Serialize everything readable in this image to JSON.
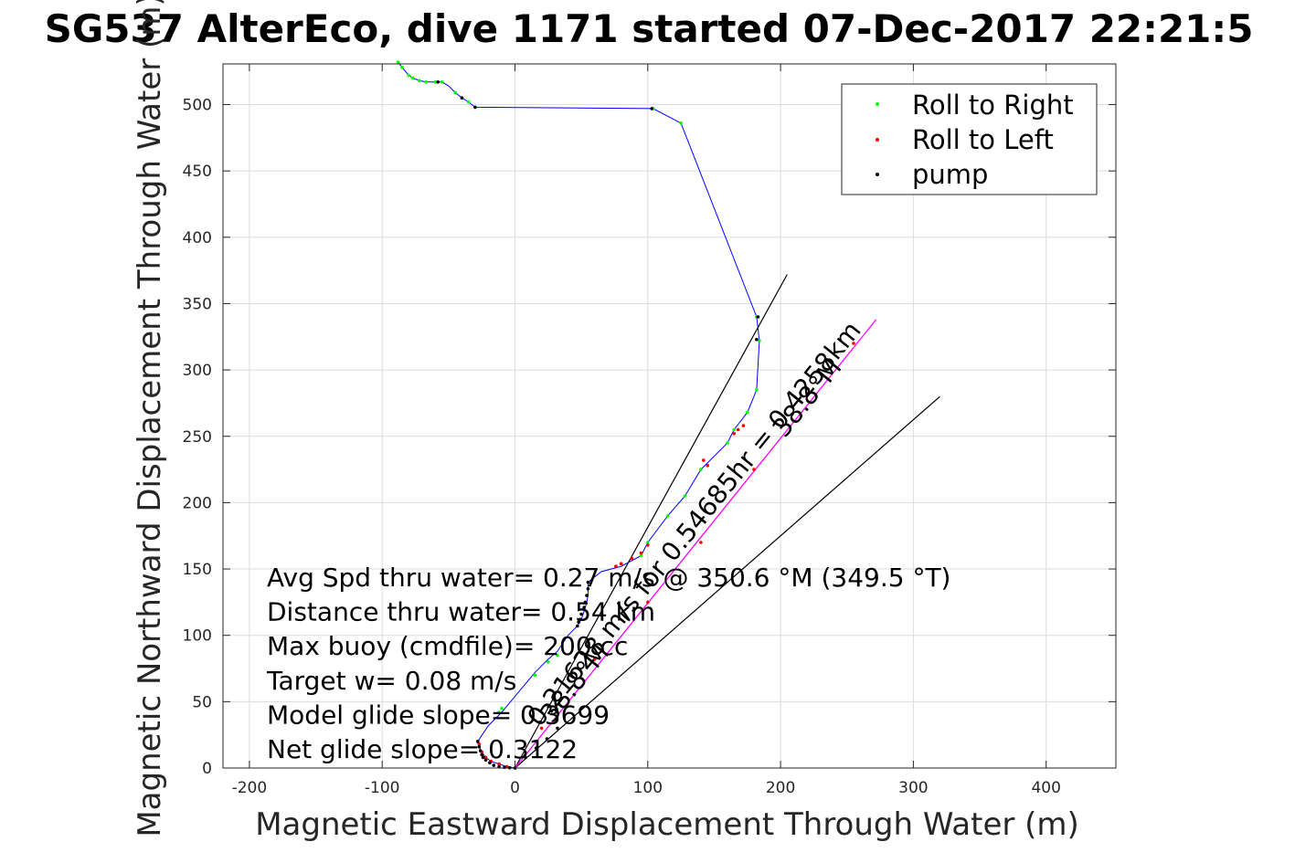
{
  "chart_data": {
    "type": "scatter",
    "title": "SG537 AlterEco, dive 1171 started 07-Dec-2017 22:21:5",
    "xlabel": "Magnetic Eastward Displacement Through Water (m)",
    "ylabel": "Magnetic Northward Displacement Through Water (m)",
    "xlim": [
      -220,
      450
    ],
    "ylim": [
      0,
      532
    ],
    "xticks": [
      -200,
      -100,
      0,
      100,
      200,
      300,
      400
    ],
    "xtick_labels": [
      "-200",
      "-100",
      "0",
      "100",
      "200",
      "300",
      "400"
    ],
    "yticks": [
      0,
      50,
      100,
      150,
      200,
      250,
      300,
      350,
      400,
      450,
      500
    ],
    "ytick_labels": [
      "0",
      "50",
      "100",
      "150",
      "200",
      "250",
      "300",
      "350",
      "400",
      "450",
      "500"
    ],
    "grid": true,
    "legend_position": "top-right",
    "colors": {
      "track": "#0000ff",
      "roll_right": "#00ff00",
      "roll_left": "#ff0000",
      "pump": "#000000",
      "net_line": "#ff00ff",
      "heading_line": "#000000",
      "grid": "#dcdcdc",
      "axes": "#262626"
    },
    "series": [
      {
        "name": "Roll to Right",
        "color": "#00ff00",
        "x": [
          -88,
          -85,
          -80,
          -77,
          -72,
          -67,
          -60,
          -55,
          -45,
          -35,
          -30,
          104,
          125,
          182,
          184,
          182,
          175,
          165,
          160,
          140,
          128,
          115,
          100,
          95,
          32,
          25,
          15,
          -10,
          -12
        ],
        "y": [
          532,
          528,
          522,
          520,
          518,
          517,
          517,
          517,
          509,
          502,
          498,
          497,
          486,
          340,
          322,
          285,
          268,
          255,
          245,
          225,
          205,
          190,
          170,
          160,
          85,
          80,
          70,
          45,
          42
        ]
      },
      {
        "name": "Roll to Left",
        "color": "#ff0000",
        "x": [
          168,
          172,
          165,
          145,
          142,
          100,
          95,
          88,
          80,
          76,
          -28,
          -27,
          -25,
          -22,
          -18,
          -12,
          -6,
          0,
          20,
          60,
          100,
          140,
          180,
          220,
          255
        ],
        "y": [
          255,
          258,
          252,
          228,
          232,
          168,
          162,
          158,
          154,
          152,
          20,
          18,
          12,
          8,
          5,
          3,
          1,
          0,
          30,
          82,
          125,
          170,
          225,
          282,
          320
        ]
      },
      {
        "name": "pump",
        "color": "#000000",
        "x": [
          -58,
          -40,
          -30,
          103,
          183,
          182,
          55,
          55,
          54,
          53,
          52,
          50,
          49,
          48,
          47,
          -28,
          -27,
          -26,
          -25,
          -24,
          -22,
          -19,
          -16,
          -12,
          -8,
          -4,
          0,
          8,
          16,
          24,
          32
        ],
        "y": [
          517,
          505,
          498,
          497,
          340,
          323,
          140,
          135,
          130,
          125,
          121,
          116,
          112,
          110,
          107,
          20,
          16,
          13,
          10,
          8,
          6,
          4,
          2,
          1,
          0.5,
          0.2,
          0,
          8,
          15,
          22,
          30
        ]
      }
    ],
    "track": {
      "x": [
        -88,
        -85,
        -80,
        -77,
        -72,
        -67,
        -60,
        -55,
        -50,
        -45,
        -40,
        -35,
        -30,
        104,
        125,
        182,
        184,
        182,
        175,
        165,
        160,
        140,
        128,
        115,
        100,
        95,
        80,
        65,
        55,
        55,
        54,
        52,
        50,
        47,
        40,
        32,
        25,
        15,
        5,
        -5,
        -10,
        -20,
        -28,
        -27,
        -25,
        -22,
        -18,
        -12,
        -6,
        0
      ],
      "y": [
        532,
        528,
        522,
        520,
        518,
        517,
        517,
        517,
        514,
        509,
        505,
        502,
        498,
        497,
        486,
        340,
        322,
        285,
        268,
        255,
        245,
        225,
        205,
        190,
        170,
        160,
        152,
        148,
        140,
        130,
        125,
        118,
        112,
        107,
        100,
        88,
        82,
        72,
        60,
        48,
        42,
        32,
        20,
        16,
        12,
        8,
        5,
        3,
        1,
        0
      ]
    },
    "net_line": {
      "x": [
        0,
        272
      ],
      "y": [
        0,
        338
      ]
    },
    "heading_lines": [
      {
        "x": [
          0,
          205
        ],
        "y": [
          0,
          372
        ]
      },
      {
        "x": [
          0,
          320
        ],
        "y": [
          0,
          280
        ]
      }
    ],
    "rotated_annotations": [
      {
        "text": "0.21628 m/s for 0.54685hr = 0.4258km",
        "x": 140,
        "y": 180,
        "angle": -51
      },
      {
        "text": "38.8°M",
        "x": 225,
        "y": 275,
        "angle": -51
      },
      {
        "text": "38.8°M",
        "x": 50,
        "y": 60,
        "angle": -51
      }
    ],
    "annotations": [
      "Avg Spd thru water=  0.27 m/s @ 350.6 °M (349.5 °T)",
      "Distance thru water= 0.54 km",
      "Max buoy (cmdfile)= 200 cc",
      "Target w= 0.08 m/s",
      "Model glide slope= 0.3699",
      "Net glide slope= 0.3122"
    ]
  }
}
